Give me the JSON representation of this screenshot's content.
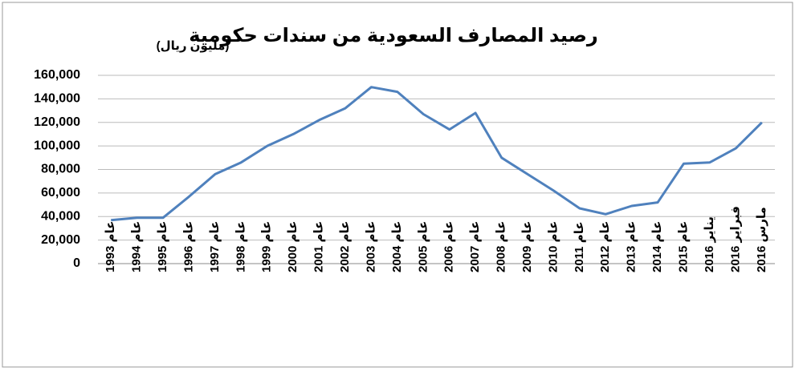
{
  "chart_data": {
    "type": "line",
    "title": "رصيد المصارف السعودية من سندات حكومية",
    "subtitle": "(مليون ريال)",
    "categories": [
      "عام 1993",
      "عام 1994",
      "عام 1995",
      "عام 1996",
      "عام 1997",
      "عام 1998",
      "عام 1999",
      "عام 2000",
      "عام 2001",
      "عام 2002",
      "عام 2003",
      "عام 2004",
      "عام 2005",
      "عام 2006",
      "عام 2007",
      "عام 2008",
      "عام 2009",
      "عام 2010",
      "عام 2011",
      "عام 2012",
      "عام 2013",
      "عام 2014",
      "عام 2015",
      "يناير 2016",
      "فبراير 2016",
      "مارس 2016"
    ],
    "series": [
      {
        "name": "رصيد المصارف السعودية من سندات حكومية",
        "color": "#4f81bd",
        "values": [
          37000,
          39000,
          39000,
          57000,
          76000,
          86000,
          100000,
          110000,
          122000,
          132000,
          150000,
          146000,
          127000,
          114000,
          128000,
          90000,
          76000,
          62000,
          47000,
          42000,
          49000,
          52000,
          85000,
          86000,
          98000,
          120000
        ]
      }
    ],
    "ylim": [
      0,
      160000
    ],
    "yticks": [
      0,
      {
        "value": 20000,
        "label": "20,000"
      },
      {
        "value": 40000,
        "label": "40,000"
      },
      {
        "value": 60000,
        "label": "60,000"
      },
      {
        "value": 80000,
        "label": "80,000"
      },
      {
        "value": 100000,
        "label": "100,000"
      },
      {
        "value": 120000,
        "label": "120,000"
      },
      {
        "value": 140000,
        "label": "140,000"
      },
      {
        "value": 160000,
        "label": "160,000"
      }
    ],
    "grid": true
  }
}
